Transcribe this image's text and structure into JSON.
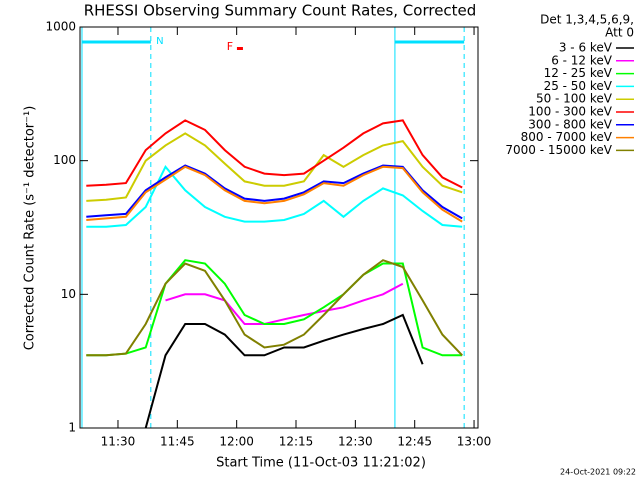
{
  "chart_data": {
    "type": "line",
    "title": "RHESSI Observing Summary Count Rates, Corrected",
    "y_label": "Corrected Count Rate (s⁻¹ detector⁻¹)",
    "x_label": "Start Time (11-Oct-03 11:21:02)",
    "legend_header": [
      "Det 1,3,4,5,6,9,",
      "Att 0"
    ],
    "footer": "24-Oct-2021 09:22",
    "log_y": true,
    "xlim": [
      680.4,
      781.0
    ],
    "ylim": [
      1,
      1000
    ],
    "xticks": [
      {
        "value": 690,
        "label": "11:30"
      },
      {
        "value": 705,
        "label": "11:45"
      },
      {
        "value": 720,
        "label": "12:00"
      },
      {
        "value": 735,
        "label": "12:15"
      },
      {
        "value": 750,
        "label": "12:30"
      },
      {
        "value": 765,
        "label": "12:45"
      },
      {
        "value": 780,
        "label": "13:00"
      }
    ],
    "yticks": [
      1,
      10,
      100,
      1000
    ],
    "night_intervals": [
      [
        680.9,
        698.3
      ],
      [
        760.0,
        777.5
      ]
    ],
    "night_label": {
      "text": "N",
      "x": 700.6
    },
    "flare_label": {
      "text": "F",
      "x": 718.3
    },
    "flare_color": "#ff0000",
    "night_color": "#00e0ff",
    "x": [
      682,
      687,
      692,
      697,
      702,
      707,
      712,
      717,
      722,
      727,
      732,
      737,
      742,
      747,
      752,
      757,
      762,
      767,
      772,
      777
    ],
    "series": [
      {
        "name": "3 - 6 keV",
        "color": "#000000",
        "values": [
          null,
          null,
          null,
          1,
          3.5,
          6,
          6,
          5,
          3.5,
          3.5,
          4,
          4,
          4.5,
          5,
          5.5,
          6,
          7,
          3,
          null,
          null
        ]
      },
      {
        "name": "6 - 12 keV",
        "color": "#ff00ff",
        "values": [
          null,
          null,
          null,
          null,
          9,
          10,
          10,
          9,
          6,
          6,
          6.5,
          7,
          7.5,
          8,
          9,
          10,
          12,
          null,
          null,
          null
        ]
      },
      {
        "name": "12 - 25 keV",
        "color": "#00ff00",
        "values": [
          3.5,
          3.5,
          3.6,
          4,
          12,
          18,
          17,
          12,
          7,
          6,
          6,
          6.5,
          8,
          10,
          14,
          17,
          17,
          4,
          3.5,
          3.5
        ]
      },
      {
        "name": "25 - 50 keV",
        "color": "#00ffff",
        "values": [
          32,
          32,
          33,
          45,
          90,
          60,
          45,
          38,
          35,
          35,
          36,
          40,
          50,
          38,
          50,
          62,
          55,
          42,
          33,
          32
        ]
      },
      {
        "name": "50 - 100 keV",
        "color": "#cccc00",
        "values": [
          50,
          51,
          53,
          100,
          130,
          160,
          130,
          95,
          70,
          65,
          65,
          70,
          110,
          90,
          110,
          130,
          140,
          90,
          65,
          58
        ]
      },
      {
        "name": "100 - 300 keV",
        "color": "#ff0000",
        "values": [
          65,
          66,
          68,
          120,
          160,
          200,
          170,
          120,
          90,
          80,
          78,
          80,
          100,
          125,
          160,
          190,
          200,
          110,
          75,
          63
        ]
      },
      {
        "name": "300 - 800 keV",
        "color": "#0000ff",
        "values": [
          38,
          39,
          40,
          60,
          75,
          92,
          80,
          62,
          52,
          50,
          52,
          58,
          70,
          68,
          80,
          92,
          90,
          60,
          45,
          37
        ]
      },
      {
        "name": "800 - 7000 keV",
        "color": "#ff8000",
        "values": [
          36,
          37,
          38,
          58,
          72,
          90,
          78,
          60,
          50,
          48,
          50,
          56,
          68,
          65,
          78,
          90,
          88,
          58,
          43,
          35
        ]
      },
      {
        "name": "7000 - 15000 keV",
        "color": "#808000",
        "values": [
          3.5,
          3.5,
          3.6,
          6,
          12,
          17,
          15,
          9,
          5,
          4,
          4.2,
          5,
          7,
          10,
          14,
          18,
          16,
          9,
          5,
          3.5
        ]
      }
    ]
  }
}
